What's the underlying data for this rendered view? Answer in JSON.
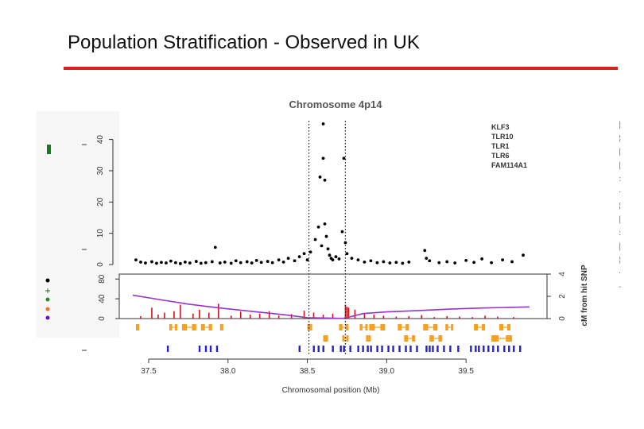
{
  "slide": {
    "title": "Population Stratification - Observed in UK",
    "rule_color": "#d9241c"
  },
  "chart_data": {
    "type": "scatter",
    "title": "Chromosome 4p14",
    "xlabel": "Chromosomal position (Mb)",
    "xlim": [
      37.38,
      39.92
    ],
    "x_ticks": [
      37.5,
      38.0,
      38.5,
      39.0,
      39.5
    ],
    "x_tick_labels": [
      "37.5",
      "38.0",
      "38.5",
      "39.0",
      "39.5"
    ],
    "hit_region": [
      38.51,
      38.74
    ],
    "gene_labels": [
      "KLF3",
      "TLR10",
      "TLR1",
      "TLR6",
      "FAM114A1"
    ],
    "association_panel": {
      "ylim": [
        0,
        46
      ],
      "y_ticks": [
        0,
        10,
        20,
        30,
        40
      ],
      "y_tick_labels": [
        "0",
        "10",
        "20",
        "30",
        "40"
      ],
      "series": [
        {
          "color": "#000000",
          "x": [
            37.42,
            37.45,
            37.48,
            37.52,
            37.55,
            37.58,
            37.61,
            37.64,
            37.67,
            37.7,
            37.73,
            37.76,
            37.8,
            37.83,
            37.86,
            37.9,
            37.92,
            37.95,
            37.98,
            38.02,
            38.05,
            38.08,
            38.12,
            38.15,
            38.18,
            38.21,
            38.25,
            38.28,
            38.32,
            38.35,
            38.38,
            38.42,
            38.45,
            38.48,
            38.5,
            38.52,
            38.55,
            38.57,
            38.58,
            38.59,
            38.6,
            38.6,
            38.61,
            38.61,
            38.62,
            38.63,
            38.64,
            38.65,
            38.66,
            38.68,
            38.7,
            38.72,
            38.73,
            38.74,
            38.75,
            38.78,
            38.82,
            38.86,
            38.9,
            38.94,
            38.98,
            39.02,
            39.06,
            39.1,
            39.14,
            39.24,
            39.25,
            39.27,
            39.33,
            39.38,
            39.43,
            39.5,
            39.55,
            39.6,
            39.66,
            39.73,
            39.79,
            39.86
          ],
          "y": [
            1.5,
            0.8,
            0.5,
            0.9,
            0.4,
            0.7,
            0.5,
            1.1,
            0.6,
            0.3,
            0.8,
            0.5,
            1.0,
            0.4,
            0.6,
            0.9,
            5.5,
            0.5,
            0.8,
            0.4,
            1.2,
            0.6,
            0.9,
            0.5,
            1.3,
            0.7,
            1.0,
            0.6,
            1.5,
            0.8,
            2.0,
            1.2,
            2.5,
            3.5,
            1.5,
            4.0,
            8.0,
            12.0,
            28.0,
            6.0,
            34.0,
            45.0,
            13.0,
            27.0,
            9.0,
            5.0,
            3.0,
            2.0,
            1.5,
            2.5,
            1.8,
            10.5,
            34.0,
            7.0,
            3.5,
            2.0,
            1.5,
            0.8,
            1.2,
            0.6,
            0.9,
            0.5,
            0.7,
            0.4,
            0.8,
            4.5,
            2.0,
            1.2,
            0.6,
            0.9,
            0.5,
            1.3,
            0.7,
            1.8,
            0.6,
            1.5,
            0.9,
            3.0
          ]
        }
      ]
    },
    "recombination_panel": {
      "left_ylim": [
        0,
        90
      ],
      "left_ticks": [
        0,
        40,
        80
      ],
      "left_tick_labels": [
        "0",
        "40",
        "80"
      ],
      "right_ylim": [
        0,
        4
      ],
      "right_ticks": [
        0,
        2,
        4
      ],
      "right_tick_labels": [
        "0",
        "2",
        "4"
      ],
      "right_label": "cM from hit SNP",
      "recomb_rate": {
        "color": "#d0141c",
        "x": [
          37.45,
          37.52,
          37.56,
          37.6,
          37.66,
          37.7,
          37.78,
          37.82,
          37.88,
          37.94,
          38.02,
          38.08,
          38.14,
          38.2,
          38.26,
          38.32,
          38.4,
          38.48,
          38.54,
          38.6,
          38.66,
          38.74,
          38.75,
          38.76,
          38.8,
          38.86,
          38.92,
          38.98,
          39.06,
          39.14,
          39.22,
          39.3,
          39.38,
          39.46,
          39.54,
          39.62,
          39.7,
          39.8
        ],
        "y": [
          5,
          22,
          8,
          12,
          15,
          28,
          10,
          18,
          12,
          30,
          6,
          14,
          8,
          10,
          15,
          6,
          9,
          16,
          12,
          8,
          10,
          28,
          24,
          22,
          18,
          10,
          8,
          6,
          4,
          5,
          7,
          3,
          5,
          4,
          3,
          6,
          4,
          3
        ]
      },
      "genetic_distance": {
        "color": "#9933cc",
        "x": [
          37.4,
          37.55,
          37.75,
          37.95,
          38.15,
          38.35,
          38.5,
          38.72,
          38.74,
          38.85,
          39.0,
          39.2,
          39.4,
          39.6,
          39.9
        ],
        "y": [
          2.1,
          1.75,
          1.3,
          0.95,
          0.65,
          0.35,
          0.08,
          0.02,
          0.05,
          0.45,
          0.6,
          0.72,
          0.85,
          0.95,
          1.05
        ]
      }
    },
    "gene_tracks": [
      {
        "color": "#f5a020",
        "genes": [
          [
            37.42,
            37.44
          ],
          [
            37.63,
            37.68
          ],
          [
            37.71,
            37.8
          ],
          [
            37.83,
            37.9
          ],
          [
            37.95,
            37.97
          ],
          [
            38.5,
            38.53
          ],
          [
            38.7,
            38.76
          ],
          [
            38.83,
            38.88
          ],
          [
            38.89,
            38.99
          ],
          [
            39.07,
            39.14
          ],
          [
            39.23,
            39.32
          ],
          [
            39.37,
            39.42
          ],
          [
            39.55,
            39.62
          ],
          [
            39.71,
            39.78
          ]
        ]
      },
      {
        "color": "#f5a020",
        "genes": [
          [
            38.6,
            38.63
          ],
          [
            38.72,
            38.76
          ],
          [
            38.87,
            38.9
          ],
          [
            39.11,
            39.18
          ],
          [
            39.27,
            39.35
          ],
          [
            39.66,
            39.79
          ]
        ]
      }
    ],
    "snp_track": {
      "color": "#2222cc",
      "x": [
        37.62,
        37.82,
        37.86,
        37.89,
        37.93,
        38.45,
        38.54,
        38.57,
        38.6,
        38.66,
        38.71,
        38.73,
        38.77,
        38.82,
        38.85,
        38.88,
        38.9,
        38.94,
        38.97,
        39.01,
        39.04,
        39.08,
        39.12,
        39.15,
        39.19,
        39.25,
        39.27,
        39.29,
        39.32,
        39.36,
        39.4,
        39.45,
        39.53,
        39.56,
        39.58,
        39.61,
        39.64,
        39.67,
        39.7,
        39.74,
        39.77,
        39.8,
        39.84
      ]
    },
    "legend_colors": [
      "#1a7a1a",
      "#000000",
      "#2a7a2a",
      "#2a8a2a",
      "#f07030",
      "#6a10c0"
    ]
  }
}
